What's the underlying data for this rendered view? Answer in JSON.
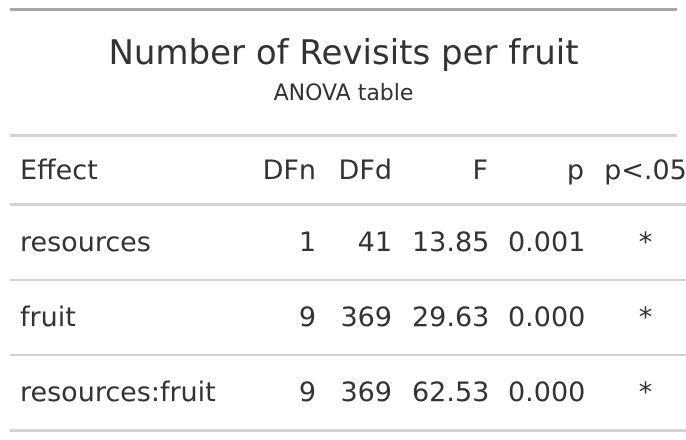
{
  "title": "Number of Revisits per fruit",
  "subtitle": "ANOVA table",
  "columns": {
    "effect": "Effect",
    "dfn": "DFn",
    "dfd": "DFd",
    "f": "F",
    "p": "p",
    "sig": "p<.05"
  },
  "rows": [
    {
      "effect": "resources",
      "dfn": "1",
      "dfd": "41",
      "f": "13.85",
      "p": "0.001",
      "sig": "*"
    },
    {
      "effect": "fruit",
      "dfn": "9",
      "dfd": "369",
      "f": "29.63",
      "p": "0.000",
      "sig": "*"
    },
    {
      "effect": "resources:fruit",
      "dfn": "9",
      "dfd": "369",
      "f": "62.53",
      "p": "0.000",
      "sig": "*"
    }
  ]
}
